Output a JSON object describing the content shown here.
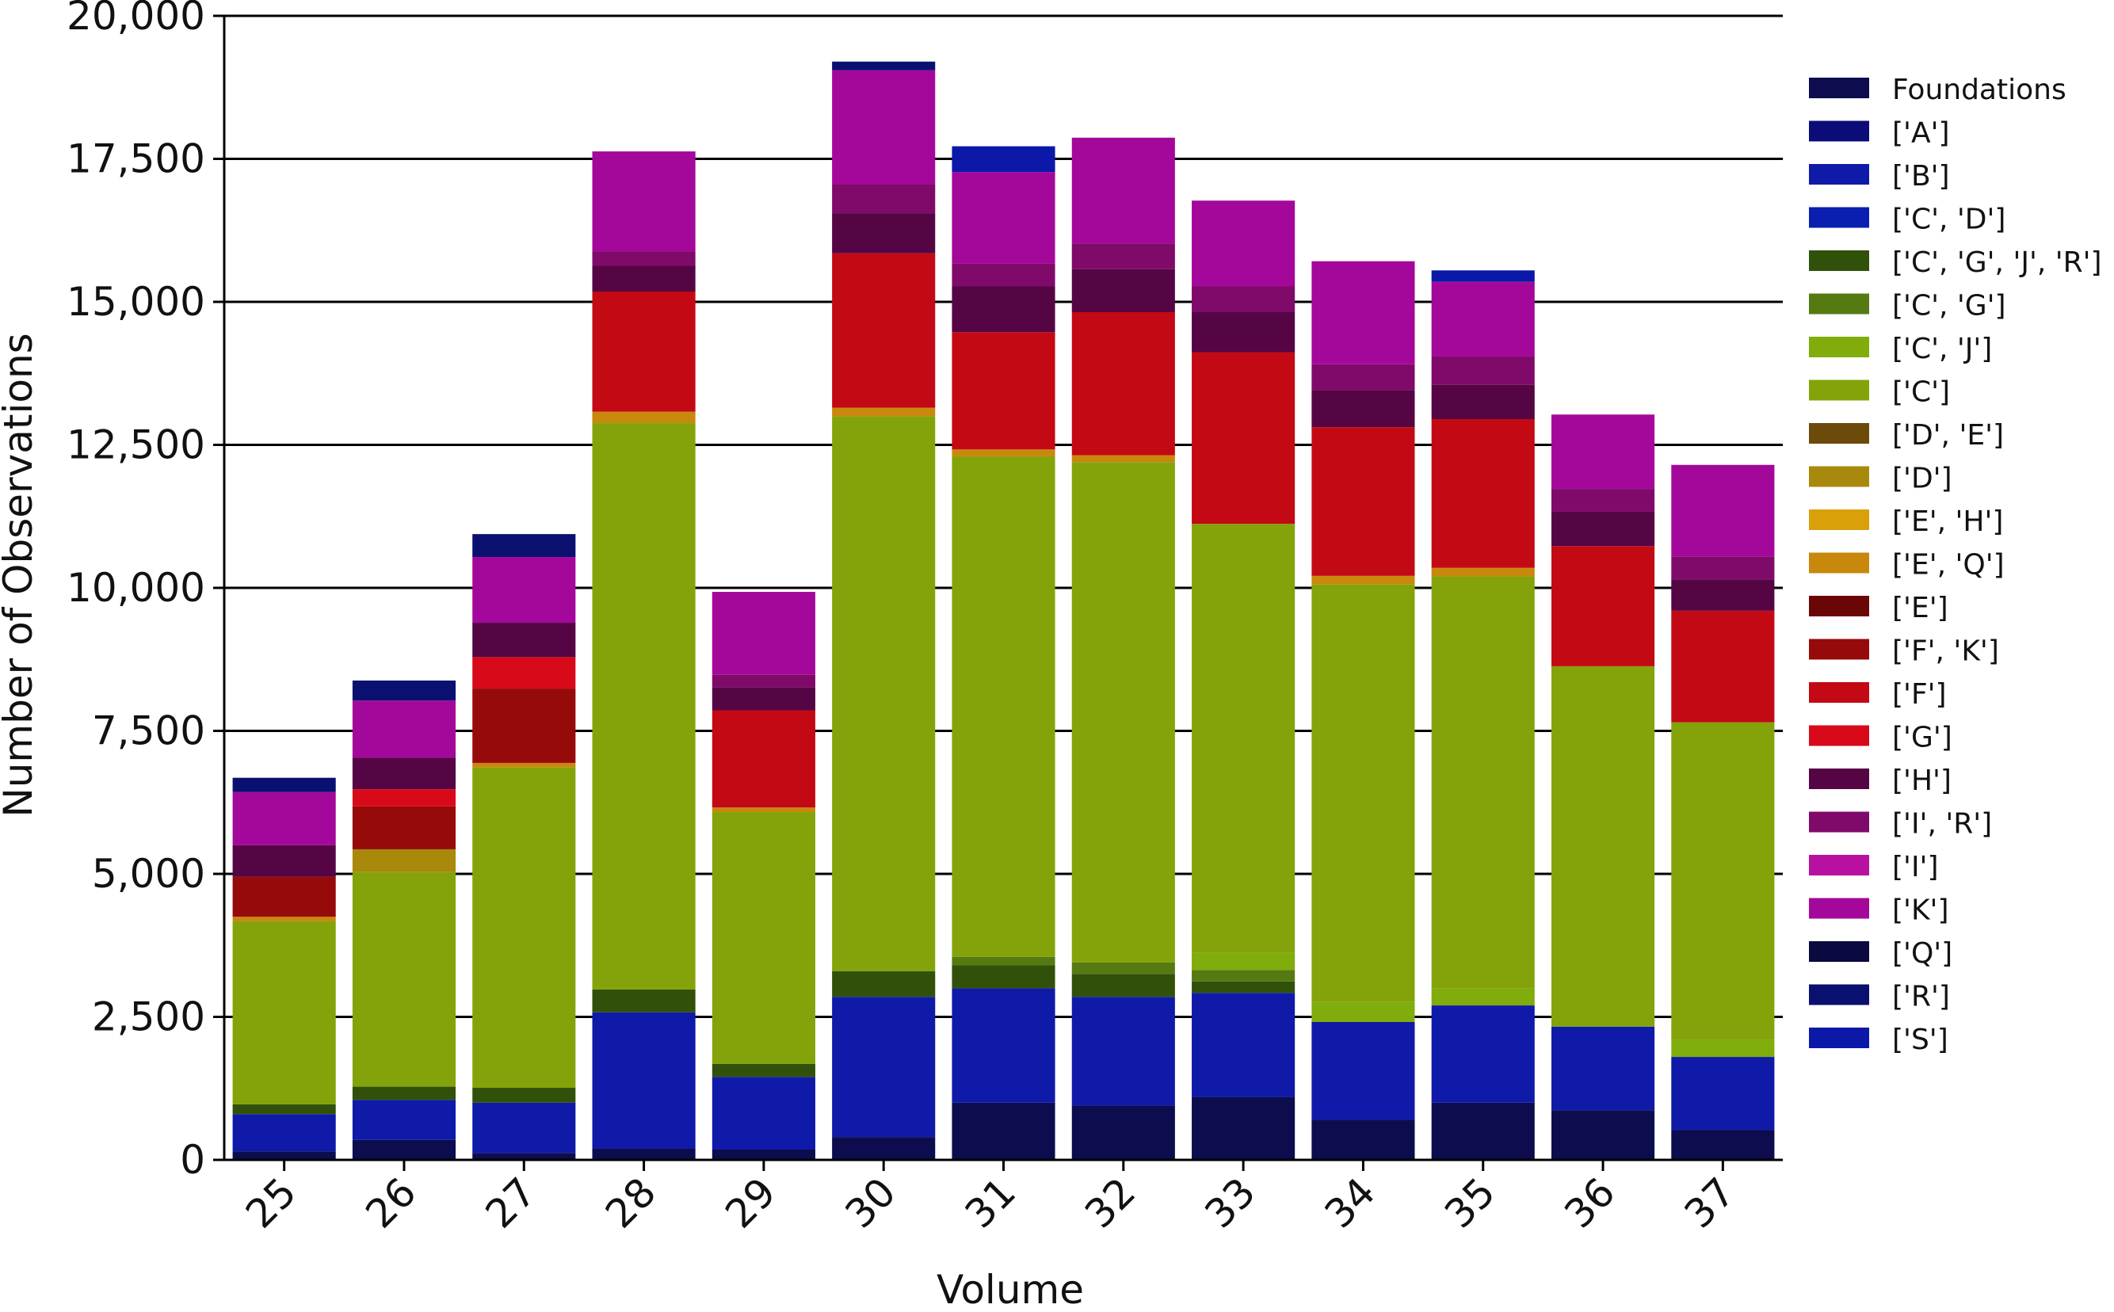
{
  "chart_data": {
    "type": "bar",
    "stacked": true,
    "title": "",
    "xlabel": "Volume",
    "ylabel": "Number of Observations",
    "ylim": [
      0,
      20000
    ],
    "yticks": [
      0,
      2500,
      5000,
      7500,
      10000,
      12500,
      15000,
      17500,
      20000
    ],
    "ytick_labels": [
      "0",
      "2,500",
      "5,000",
      "7,500",
      "10,000",
      "12,500",
      "15,000",
      "17,500",
      "20,000"
    ],
    "grid": "horizontal",
    "legend_position": "right",
    "categories": [
      "25",
      "26",
      "27",
      "28",
      "29",
      "30",
      "31",
      "32",
      "33",
      "34",
      "35",
      "36",
      "37"
    ],
    "series": [
      {
        "name": "Foundations",
        "color": "#0c0c4f",
        "values": [
          150,
          350,
          120,
          200,
          180,
          400,
          1000,
          950,
          1100,
          700,
          1000,
          870,
          520
        ]
      },
      {
        "name": "['A']",
        "color": "#0c0c78",
        "values": [
          0,
          0,
          0,
          0,
          0,
          0,
          0,
          0,
          0,
          0,
          0,
          0,
          0
        ]
      },
      {
        "name": "['B']",
        "color": "#0f1aa8",
        "values": [
          650,
          700,
          880,
          2380,
          1270,
          2450,
          2000,
          1900,
          1820,
          1710,
          1700,
          1460,
          1280
        ]
      },
      {
        "name": "['C', 'D']",
        "color": "#0a1eb0",
        "values": [
          0,
          0,
          0,
          0,
          0,
          0,
          0,
          0,
          0,
          0,
          0,
          0,
          0
        ]
      },
      {
        "name": "['C', 'G', 'J', 'R']",
        "color": "#31510a",
        "values": [
          170,
          230,
          260,
          400,
          230,
          450,
          400,
          400,
          200,
          0,
          0,
          0,
          0
        ]
      },
      {
        "name": "['C', 'G']",
        "color": "#557a12",
        "values": [
          0,
          0,
          0,
          0,
          0,
          0,
          150,
          200,
          200,
          0,
          0,
          0,
          0
        ]
      },
      {
        "name": "['C', 'J']",
        "color": "#80ac0c",
        "values": [
          0,
          0,
          0,
          0,
          0,
          0,
          0,
          0,
          300,
          350,
          300,
          0,
          300
        ]
      },
      {
        "name": "['C']",
        "color": "#84a30a",
        "values": [
          3200,
          3750,
          5600,
          9900,
          4400,
          9700,
          8750,
          8750,
          7500,
          7300,
          7200,
          6300,
          5550
        ]
      },
      {
        "name": "['D', 'E']",
        "color": "#6b4a0a",
        "values": [
          0,
          0,
          0,
          0,
          0,
          0,
          0,
          0,
          0,
          0,
          0,
          0,
          0
        ]
      },
      {
        "name": "['D']",
        "color": "#a8890c",
        "values": [
          0,
          400,
          0,
          0,
          0,
          0,
          0,
          0,
          0,
          0,
          0,
          0,
          0
        ]
      },
      {
        "name": "['E', 'H']",
        "color": "#d9a00a",
        "values": [
          0,
          0,
          0,
          0,
          0,
          0,
          0,
          0,
          0,
          0,
          0,
          0,
          0
        ]
      },
      {
        "name": "['E', 'Q']",
        "color": "#c8880c",
        "values": [
          80,
          0,
          80,
          200,
          80,
          150,
          120,
          120,
          0,
          150,
          150,
          0,
          0
        ]
      },
      {
        "name": "['E']",
        "color": "#6a0606",
        "values": [
          0,
          0,
          0,
          0,
          0,
          0,
          0,
          0,
          0,
          0,
          0,
          0,
          0
        ]
      },
      {
        "name": "['F', 'K']",
        "color": "#960a0a",
        "values": [
          700,
          750,
          1300,
          0,
          0,
          0,
          0,
          0,
          0,
          0,
          0,
          0,
          0
        ]
      },
      {
        "name": "['F']",
        "color": "#c30a14",
        "values": [
          0,
          0,
          0,
          2100,
          1700,
          2700,
          2050,
          2500,
          3000,
          2600,
          2600,
          2100,
          1950
        ]
      },
      {
        "name": "['G']",
        "color": "#d80a1a",
        "values": [
          0,
          300,
          550,
          0,
          0,
          0,
          0,
          0,
          0,
          0,
          0,
          0,
          0
        ]
      },
      {
        "name": "['H']",
        "color": "#550544",
        "values": [
          550,
          550,
          600,
          450,
          400,
          700,
          800,
          750,
          700,
          650,
          600,
          600,
          550
        ]
      },
      {
        "name": "['I', 'R']",
        "color": "#800a6a",
        "values": [
          0,
          0,
          0,
          250,
          220,
          500,
          400,
          450,
          450,
          450,
          500,
          400,
          400
        ]
      },
      {
        "name": "['I']",
        "color": "#b810a0",
        "values": [
          0,
          0,
          0,
          0,
          0,
          0,
          0,
          0,
          0,
          0,
          0,
          0,
          0
        ]
      },
      {
        "name": "['K']",
        "color": "#a4089a",
        "values": [
          930,
          1000,
          1150,
          1750,
          1450,
          2000,
          1600,
          1850,
          1500,
          1800,
          1300,
          1300,
          1600
        ]
      },
      {
        "name": "['Q']",
        "color": "#0a0a40",
        "values": [
          0,
          0,
          0,
          0,
          0,
          0,
          0,
          0,
          0,
          0,
          0,
          0,
          0
        ]
      },
      {
        "name": "['R']",
        "color": "#0a1070",
        "values": [
          250,
          350,
          400,
          0,
          0,
          150,
          0,
          0,
          0,
          0,
          0,
          0,
          0
        ]
      },
      {
        "name": "['S']",
        "color": "#0c18a8",
        "values": [
          0,
          0,
          0,
          0,
          0,
          0,
          450,
          0,
          0,
          0,
          200,
          0,
          0
        ]
      }
    ]
  }
}
